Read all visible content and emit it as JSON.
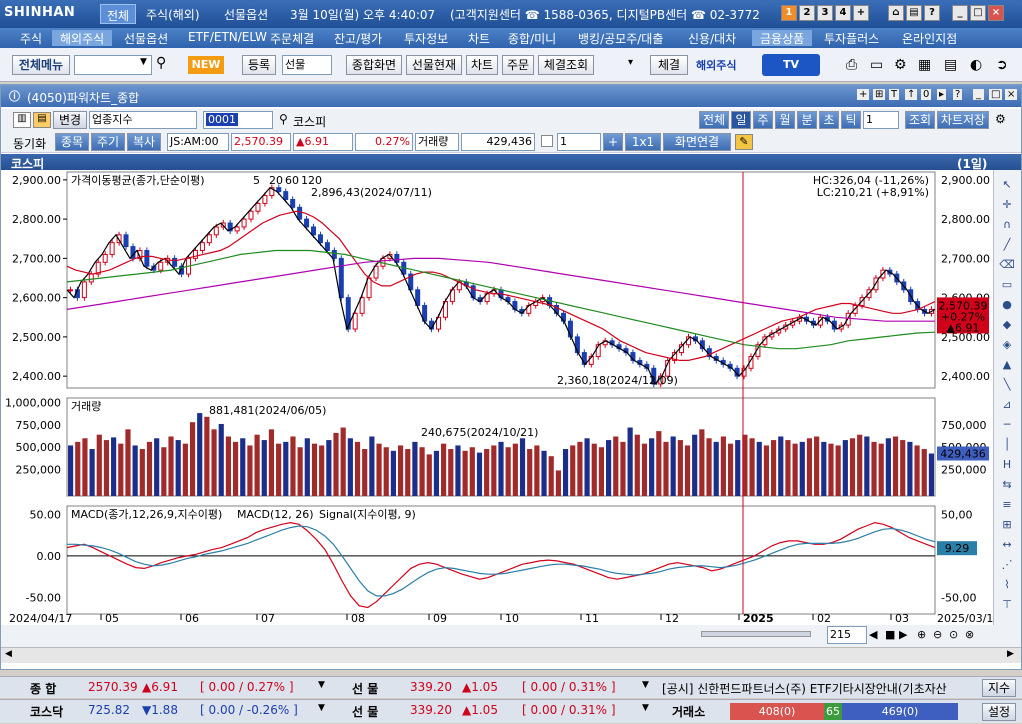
{
  "titlebar": {
    "logo": "SHINHAN",
    "tabs": [
      "전체",
      "주식(해외)",
      "선물옵션"
    ],
    "clock": "3월 10일(월) 오후 4:40:07",
    "support": "(고객지원센터 ☎ 1588-0365, 디지털PB센터 ☎ 02-3772-",
    "num_buttons": [
      "1",
      "2",
      "3",
      "4",
      "+"
    ],
    "win_buttons": [
      "⌂",
      "▤",
      "?",
      "_",
      "□",
      "×"
    ]
  },
  "menubar": [
    "주식",
    "해외주식",
    "선물옵션",
    "ETF/ETN/ELW",
    "주문체결",
    "잔고/평가",
    "투자정보",
    "차트",
    "종합/미니",
    "뱅킹/공모주/대출",
    "신용/대차",
    "금융상품",
    "투자플러스",
    "온라인지점"
  ],
  "toolbar": {
    "menu_btn": "전체메뉴",
    "search_value": "",
    "new_badge": "NEW",
    "register": "등록",
    "futures_select": "선물",
    "buttons": [
      "종합화면",
      "선물현재",
      "차트",
      "주문",
      "체결조회"
    ],
    "exec": "체결",
    "overseas": "해외주식",
    "tv": "TV"
  },
  "panel": {
    "title": "(4050)파워차트_종합",
    "row1": {
      "change_btn": "변경",
      "category": "업종지수",
      "code": "0001",
      "name": "코스피",
      "periods": [
        "전체",
        "일",
        "주",
        "월",
        "분",
        "초",
        "틱"
      ],
      "period_count": "1",
      "query": "조회",
      "save": "차트저장"
    },
    "row2": {
      "sync": "동기화",
      "tabs": [
        "종목",
        "주기",
        "복사"
      ],
      "code_time": "JS:AM:00",
      "price": "2,570.39",
      "change": "▲6.91",
      "pct": "0.27%",
      "volume_label": "거래량",
      "volume": "429,436",
      "count": "1",
      "grid": "1x1",
      "link": "화면연결"
    },
    "chart_header": "코스피",
    "chart_period": "(1일)"
  },
  "chart_data": [
    {
      "type": "line",
      "name": "price",
      "legend": [
        "가격이동평균(종가,단순이평)",
        "5",
        "20",
        "60",
        "120"
      ],
      "legend_colors": [
        "#000000",
        "#000000",
        "#d0021b",
        "#1e8b1e",
        "#b000b0"
      ],
      "ylim": [
        2380,
        2920
      ],
      "yticks": [
        "2,900.00",
        "2,800.00",
        "2,700.00",
        "2,600.00",
        "2,500.00",
        "2,400.00"
      ],
      "ytick_values": [
        2900,
        2800,
        2700,
        2600,
        2500,
        2400
      ],
      "hc_label": "HC:326,04 (-11,26%)",
      "lc_label": "LC:210,21 (+8,91%)",
      "high_annot": "2,896,43(2024/07/11)",
      "low_annot": "2,360,18(2024/12/09)",
      "last_price": "2,570.39",
      "last_pct": "+0.27%",
      "last_change": "▲6.91",
      "closes": [
        2620,
        2600,
        2640,
        2660,
        2690,
        2710,
        2740,
        2760,
        2730,
        2700,
        2720,
        2680,
        2670,
        2690,
        2700,
        2680,
        2660,
        2700,
        2720,
        2740,
        2760,
        2780,
        2790,
        2770,
        2780,
        2800,
        2820,
        2840,
        2860,
        2880,
        2870,
        2850,
        2830,
        2800,
        2780,
        2760,
        2740,
        2720,
        2700,
        2600,
        2520,
        2560,
        2600,
        2650,
        2680,
        2700,
        2710,
        2690,
        2660,
        2620,
        2580,
        2540,
        2520,
        2550,
        2590,
        2620,
        2640,
        2630,
        2600,
        2590,
        2610,
        2620,
        2600,
        2590,
        2570,
        2560,
        2580,
        2590,
        2600,
        2580,
        2560,
        2540,
        2500,
        2460,
        2430,
        2450,
        2480,
        2490,
        2480,
        2470,
        2460,
        2440,
        2430,
        2420,
        2380,
        2400,
        2440,
        2460,
        2480,
        2500,
        2490,
        2470,
        2450,
        2440,
        2430,
        2420,
        2400,
        2420,
        2450,
        2480,
        2500,
        2510,
        2520,
        2530,
        2540,
        2550,
        2540,
        2530,
        2550,
        2540,
        2520,
        2530,
        2560,
        2580,
        2600,
        2620,
        2650,
        2670,
        2660,
        2640,
        2620,
        2590,
        2570,
        2560,
        2570
      ],
      "ma20": [
        2680,
        2670,
        2665,
        2660,
        2665,
        2670,
        2680,
        2690,
        2700,
        2705,
        2705,
        2700,
        2695,
        2695,
        2700,
        2705,
        2710,
        2715,
        2720,
        2730,
        2745,
        2760,
        2775,
        2790,
        2800,
        2810,
        2815,
        2820,
        2815,
        2805,
        2790,
        2770,
        2750,
        2720,
        2690,
        2660,
        2640,
        2630,
        2630,
        2640,
        2650,
        2660,
        2665,
        2665,
        2660,
        2650,
        2640,
        2630,
        2620,
        2615,
        2610,
        2610,
        2605,
        2600,
        2595,
        2590,
        2585,
        2580,
        2570,
        2560,
        2550,
        2540,
        2530,
        2520,
        2505,
        2490,
        2480,
        2470,
        2460,
        2455,
        2450,
        2445,
        2440,
        2440,
        2445,
        2450,
        2460,
        2470,
        2480,
        2490,
        2500,
        2510,
        2520,
        2530,
        2540,
        2545,
        2550,
        2560,
        2570,
        2575,
        2580,
        2585,
        2585,
        2580,
        2575,
        2570,
        2565,
        2560,
        2560,
        2565,
        2570,
        2580,
        2590
      ],
      "ma60": [
        2640,
        2645,
        2650,
        2655,
        2660,
        2665,
        2670,
        2680,
        2690,
        2700,
        2710,
        2715,
        2720,
        2720,
        2720,
        2715,
        2710,
        2700,
        2690,
        2680,
        2670,
        2660,
        2650,
        2640,
        2630,
        2620,
        2610,
        2600,
        2590,
        2580,
        2570,
        2560,
        2550,
        2540,
        2530,
        2520,
        2510,
        2500,
        2490,
        2480,
        2475,
        2470,
        2470,
        2475,
        2480,
        2490,
        2495,
        2500,
        2505,
        2510,
        2512
      ],
      "ma120": [
        2570,
        2580,
        2590,
        2600,
        2610,
        2620,
        2630,
        2640,
        2650,
        2660,
        2670,
        2680,
        2690,
        2695,
        2700,
        2700,
        2695,
        2690,
        2680,
        2670,
        2660,
        2650,
        2640,
        2630,
        2620,
        2610,
        2600,
        2590,
        2580,
        2570,
        2560,
        2550,
        2545,
        2540,
        2540,
        2540
      ]
    },
    {
      "type": "bar",
      "name": "volume",
      "legend": [
        "거래량"
      ],
      "ylim": [
        0,
        1050000
      ],
      "yticks": [
        "1,000,000",
        "750,000",
        "500,000",
        "250,000"
      ],
      "ytick_values": [
        1000000,
        750000,
        500000,
        250000
      ],
      "high_annot": "881,481(2024/06/05)",
      "mid_annot": "240,675(2024/10/21)",
      "last_volume": "429,436",
      "right_ticks": [
        "750,000",
        "500,000",
        "250,000"
      ],
      "values": [
        520000,
        560000,
        600000,
        480000,
        640000,
        580000,
        610000,
        540000,
        700000,
        520000,
        480000,
        560000,
        600000,
        500000,
        620000,
        580000,
        540000,
        780000,
        881481,
        840000,
        700000,
        760000,
        620000,
        560000,
        600000,
        520000,
        640000,
        580000,
        700000,
        540000,
        560000,
        620000,
        500000,
        600000,
        540000,
        520000,
        580000,
        660000,
        720000,
        600000,
        560000,
        480000,
        620000,
        540000,
        500000,
        460000,
        520000,
        480000,
        560000,
        500000,
        420000,
        460000,
        540000,
        480000,
        520000,
        460000,
        500000,
        440000,
        480000,
        520000,
        560000,
        500000,
        540000,
        600000,
        480000,
        520000,
        460000,
        400000,
        240675,
        480000,
        520000,
        560000,
        600000,
        540000,
        500000,
        580000,
        620000,
        560000,
        720000,
        640000,
        540000,
        600000,
        680000,
        560000,
        620000,
        580000,
        520000,
        640000,
        700000,
        600000,
        560000,
        620000,
        540000,
        580000,
        640000,
        600000,
        560000,
        520000,
        580000,
        620000,
        580000,
        540000,
        560000,
        600000,
        620000,
        560000,
        540000,
        520000,
        580000,
        600000,
        640000,
        620000,
        560000,
        540000,
        600000,
        620000,
        580000,
        560000,
        520000,
        480000,
        430000
      ],
      "colors_up": "#a12a2a",
      "colors_down": "#1b2e8a"
    },
    {
      "type": "line",
      "name": "macd",
      "legend": [
        "MACD(종가,12,26,9,지수이평)",
        "MACD(12, 26)",
        "Signal(지수이평, 9)"
      ],
      "legend_colors": [
        "#000000",
        "#d0021b",
        "#2a7fa8"
      ],
      "ylim": [
        -65,
        60
      ],
      "yticks": [
        "50.00",
        "0.00",
        "-50.00"
      ],
      "ytick_values": [
        50,
        0,
        -50
      ],
      "right_ticks": [
        "50,00",
        "-50,00"
      ],
      "last_value": "9.29",
      "macd": [
        10,
        12,
        14,
        10,
        5,
        0,
        -5,
        -10,
        -14,
        -15,
        -12,
        -8,
        -5,
        -2,
        0,
        2,
        5,
        8,
        10,
        14,
        18,
        22,
        28,
        32,
        35,
        38,
        40,
        38,
        30,
        20,
        8,
        -10,
        -30,
        -48,
        -60,
        -62,
        -55,
        -45,
        -35,
        -25,
        -15,
        -10,
        -8,
        -10,
        -14,
        -18,
        -22,
        -25,
        -28,
        -26,
        -22,
        -18,
        -14,
        -10,
        -8,
        -6,
        -5,
        -6,
        -8,
        -10,
        -14,
        -18,
        -22,
        -26,
        -28,
        -26,
        -24,
        -22,
        -18,
        -14,
        -10,
        -8,
        -10,
        -12,
        -14,
        -18,
        -16,
        -12,
        -8,
        -4,
        0,
        6,
        12,
        16,
        18,
        18,
        16,
        14,
        14,
        16,
        20,
        26,
        32,
        36,
        40,
        38,
        34,
        28,
        22,
        18,
        14,
        10
      ],
      "signal": [
        14,
        14,
        13,
        12,
        10,
        7,
        3,
        -2,
        -7,
        -10,
        -12,
        -11,
        -9,
        -6,
        -3,
        -1,
        2,
        4,
        6,
        9,
        12,
        15,
        19,
        23,
        27,
        31,
        34,
        36,
        35,
        31,
        24,
        14,
        0,
        -15,
        -30,
        -42,
        -48,
        -48,
        -45,
        -40,
        -33,
        -26,
        -20,
        -16,
        -14,
        -15,
        -17,
        -19,
        -21,
        -22,
        -22,
        -21,
        -19,
        -17,
        -15,
        -13,
        -11,
        -10,
        -10,
        -11,
        -12,
        -14,
        -16,
        -19,
        -21,
        -22,
        -23,
        -22,
        -21,
        -19,
        -16,
        -14,
        -13,
        -12,
        -12,
        -13,
        -14,
        -13,
        -11,
        -8,
        -5,
        -1,
        3,
        7,
        11,
        14,
        15,
        15,
        15,
        15,
        16,
        18,
        21,
        25,
        29,
        32,
        33,
        31,
        28,
        24,
        20,
        17
      ]
    }
  ],
  "xaxis": {
    "start": "2024/04/17",
    "end": "2025/03/10",
    "labels": [
      "05",
      "06",
      "07",
      "08",
      "09",
      "10",
      "11",
      "12",
      "2025",
      "02",
      "03"
    ]
  },
  "scrollrow": {
    "zoom": "215"
  },
  "status": {
    "row1": {
      "label1": "종  합",
      "price1": "2570.39",
      "chg1": "▲6.91",
      "pct1": "[ 0.00 / 0.27% ]",
      "label2": "선  물",
      "price2": "339.20",
      "chg2": "▲1.05",
      "pct2": "[ 0.00 / 0.31% ]",
      "notice": "[공시] 신한펀드파트너스(주) ETF기타시장안내(기초자산",
      "btn": "지수"
    },
    "row2": {
      "label1": "코스닥",
      "price1": "725.82",
      "chg1": "▼1.88",
      "pct1": "[ 0.00 / -0.26% ]",
      "label2": "선  물",
      "price2": "339.20",
      "chg2": "▲1.05",
      "pct2": "[ 0.00 / 0.31% ]",
      "vol_label": "거래소",
      "up_count": "408(0)",
      "flat_count": "65",
      "down_count": "469(0)",
      "btn": "설정"
    }
  }
}
